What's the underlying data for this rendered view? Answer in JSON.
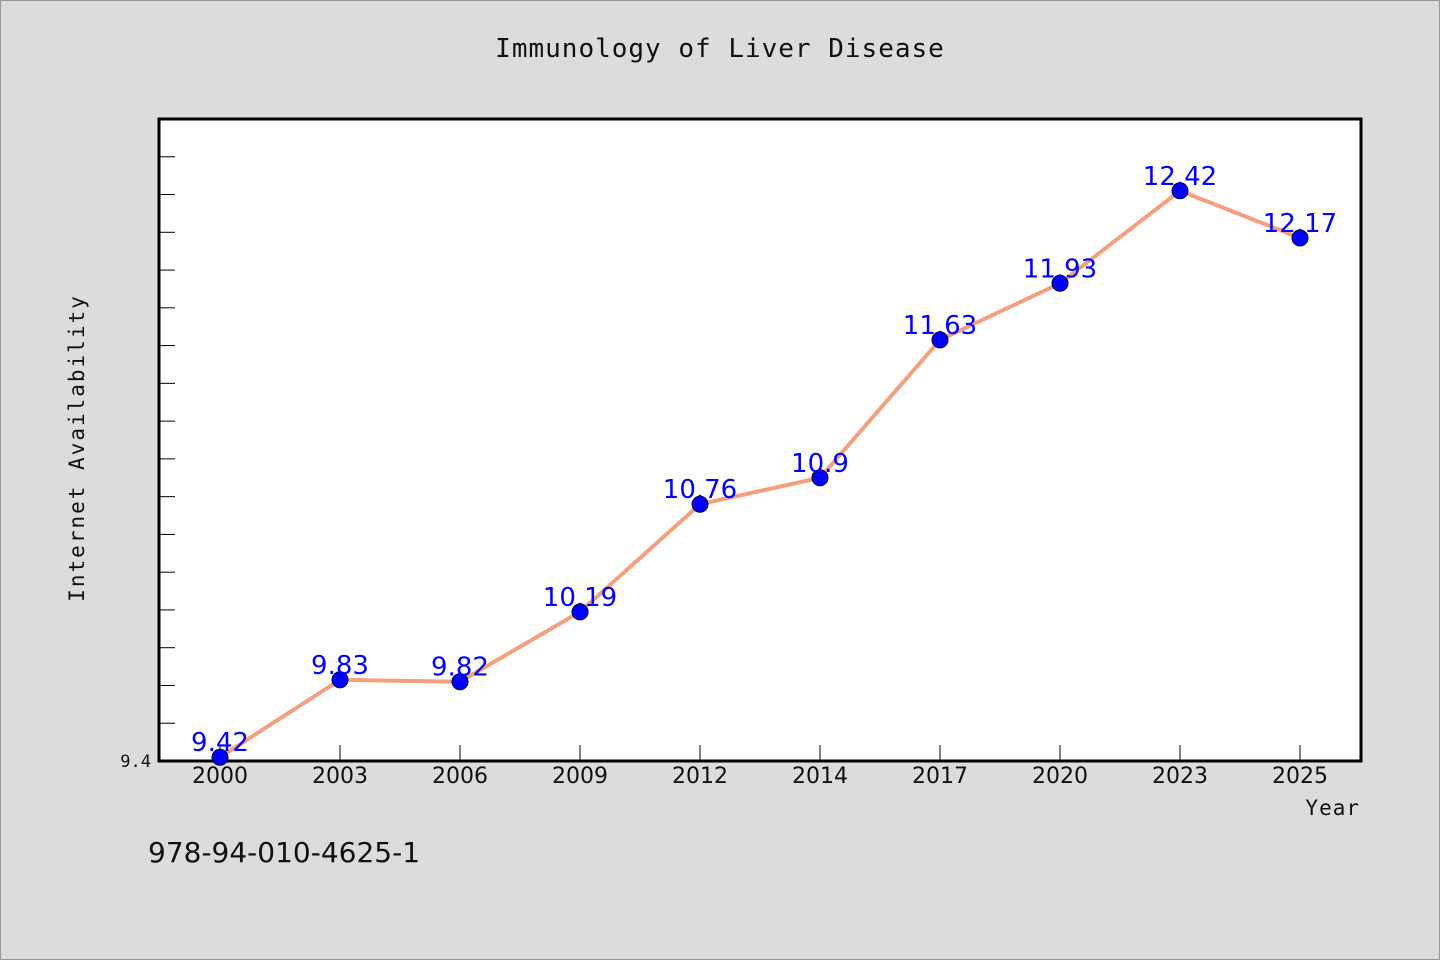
{
  "chart_data": {
    "type": "line",
    "title": "Immunology of Liver Disease",
    "xlabel": "Year",
    "ylabel": "Internet Availability",
    "categories": [
      "2000",
      "2003",
      "2006",
      "2009",
      "2012",
      "2014",
      "2017",
      "2020",
      "2023",
      "2025"
    ],
    "values": [
      9.42,
      9.83,
      9.82,
      10.19,
      10.76,
      10.9,
      11.63,
      11.93,
      12.42,
      12.17
    ],
    "data_labels": [
      "9.42",
      "9.83",
      "9.82",
      "10.19",
      "10.76",
      "10.9",
      "11.63",
      "11.93",
      "12.42",
      "12.17"
    ],
    "ylim": [
      9.4,
      12.8
    ],
    "y_tick_labels": [
      "9.4"
    ],
    "grid": false,
    "legend": "none",
    "colors": {
      "line": "#f4a07e",
      "marker": "#0000ff",
      "data_label": "#0000ff",
      "plot_background": "#ffffff",
      "figure_background": "#dcdcdc"
    }
  },
  "footer": {
    "isbn": "978-94-010-4625-1"
  }
}
